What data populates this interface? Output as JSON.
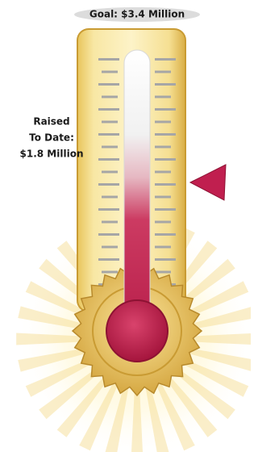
{
  "goal": {
    "label": "Goal: $3.4 Million"
  },
  "raised": {
    "lines": [
      "Raised",
      "To Date:",
      "$1.8 Million"
    ]
  }
}
